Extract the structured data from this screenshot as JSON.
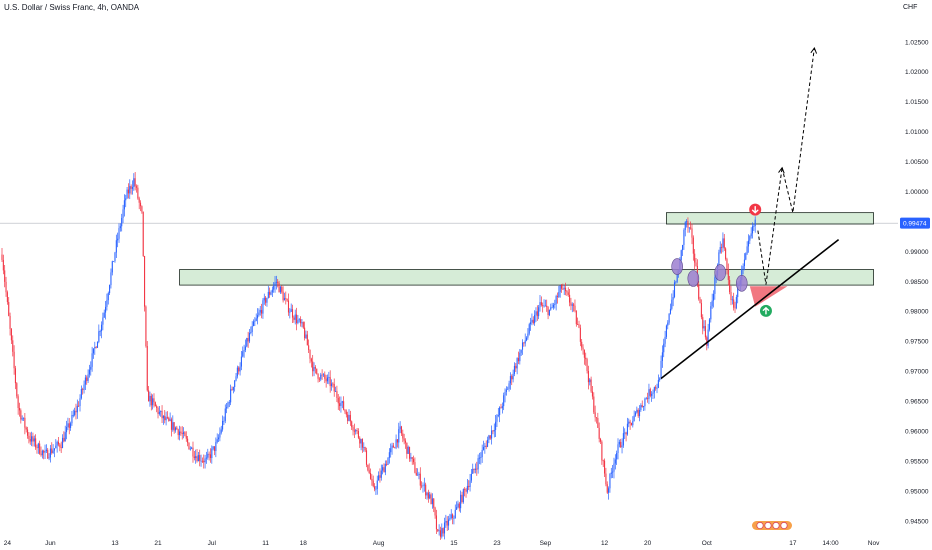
{
  "header": {
    "title": "U.S. Dollar / Swiss Franc, 4h, OANDA",
    "currency": "CHF"
  },
  "colors": {
    "up": "#2962ff",
    "down": "#f23645",
    "zone_fill": "#c8e6c9",
    "zone_stroke": "#1e2a22",
    "marker_purple": "#9c7fd0",
    "triangle_fill": "#ef5f6b",
    "arrow_down": "#f23645",
    "arrow_up": "#22ab60",
    "price_tag": "#2962ff"
  },
  "chart_data": {
    "type": "candlestick",
    "symbol": "U.S. Dollar / Swiss Franc, 4h, OANDA",
    "ylim": [
      0.943,
      1.027
    ],
    "yticks": [
      "1.02500",
      "1.02000",
      "1.01500",
      "1.01000",
      "1.00500",
      "1.00000",
      "0.99500",
      "0.99000",
      "0.98500",
      "0.98000",
      "0.97500",
      "0.97000",
      "0.96500",
      "0.96000",
      "0.95500",
      "0.95000",
      "0.94500"
    ],
    "current_price": 0.99474,
    "current_price_label": "0.99474",
    "xlim_days": [
      0,
      162
    ],
    "xticks": [
      {
        "label": "24",
        "day": 1
      },
      {
        "label": "Jun",
        "day": 9
      },
      {
        "label": "13",
        "day": 21
      },
      {
        "label": "21",
        "day": 29
      },
      {
        "label": "Jul",
        "day": 39
      },
      {
        "label": "11",
        "day": 49
      },
      {
        "label": "18",
        "day": 56
      },
      {
        "label": "Aug",
        "day": 70
      },
      {
        "label": "15",
        "day": 84
      },
      {
        "label": "23",
        "day": 92
      },
      {
        "label": "Sep",
        "day": 101
      },
      {
        "label": "12",
        "day": 112
      },
      {
        "label": "20",
        "day": 120
      },
      {
        "label": "Oct",
        "day": 131
      },
      {
        "label": "17",
        "day": 147
      },
      {
        "label": "14:00",
        "day": 154
      },
      {
        "label": "Nov",
        "day": 162
      }
    ],
    "price_path": [
      [
        0,
        0.9895
      ],
      [
        3,
        0.964
      ],
      [
        5,
        0.959
      ],
      [
        8,
        0.956
      ],
      [
        11,
        0.958
      ],
      [
        14,
        0.964
      ],
      [
        17,
        0.973
      ],
      [
        19,
        0.98
      ],
      [
        21,
        0.99
      ],
      [
        23,
        0.999
      ],
      [
        24.5,
        1.002
      ],
      [
        26,
        0.996
      ],
      [
        27,
        0.966
      ],
      [
        30,
        0.962
      ],
      [
        33,
        0.96
      ],
      [
        36,
        0.956
      ],
      [
        38,
        0.955
      ],
      [
        40,
        0.958
      ],
      [
        43,
        0.968
      ],
      [
        46,
        0.976
      ],
      [
        49,
        0.982
      ],
      [
        51,
        0.985
      ],
      [
        53,
        0.981
      ],
      [
        56,
        0.977
      ],
      [
        58,
        0.97
      ],
      [
        61,
        0.968
      ],
      [
        64,
        0.963
      ],
      [
        67,
        0.958
      ],
      [
        69,
        0.95
      ],
      [
        71,
        0.954
      ],
      [
        74,
        0.96
      ],
      [
        77,
        0.953
      ],
      [
        80,
        0.948
      ],
      [
        81,
        0.9425
      ],
      [
        84,
        0.946
      ],
      [
        87,
        0.952
      ],
      [
        90,
        0.958
      ],
      [
        92,
        0.962
      ],
      [
        95,
        0.97
      ],
      [
        98,
        0.977
      ],
      [
        100,
        0.981
      ],
      [
        102,
        0.98
      ],
      [
        104,
        0.984
      ],
      [
        106,
        0.981
      ],
      [
        108,
        0.974
      ],
      [
        110,
        0.964
      ],
      [
        111,
        0.959
      ],
      [
        112.5,
        0.95
      ],
      [
        114,
        0.956
      ],
      [
        116,
        0.96
      ],
      [
        118,
        0.963
      ],
      [
        120,
        0.966
      ],
      [
        122,
        0.968
      ],
      [
        124,
        0.98
      ],
      [
        126,
        0.988
      ],
      [
        127,
        0.995
      ],
      [
        128,
        0.993
      ],
      [
        129,
        0.987
      ],
      [
        130,
        0.979
      ],
      [
        131,
        0.975
      ],
      [
        132,
        0.982
      ],
      [
        133,
        0.988
      ],
      [
        134,
        0.992
      ],
      [
        135,
        0.985
      ],
      [
        136,
        0.98
      ],
      [
        137,
        0.985
      ],
      [
        138,
        0.988
      ],
      [
        139,
        0.992
      ],
      [
        140,
        0.995
      ]
    ],
    "zones": [
      {
        "name": "upper",
        "day_from": 123.5,
        "day_to": 162,
        "y_top": 0.9965,
        "y_bottom": 0.9946
      },
      {
        "name": "lower",
        "day_from": 33,
        "day_to": 162,
        "y_top": 0.987,
        "y_bottom": 0.9844
      }
    ],
    "trendline": {
      "from": [
        122.5,
        0.9688
      ],
      "to": [
        155.5,
        0.992
      ]
    },
    "markers": {
      "purple_ellipses": [
        [
          125.5,
          0.9875
        ],
        [
          128.5,
          0.9855
        ],
        [
          133.5,
          0.9865
        ],
        [
          137.5,
          0.9847
        ]
      ],
      "red_triangle": [
        [
          139,
          0.9842
        ],
        [
          146,
          0.9842
        ],
        [
          140,
          0.9808
        ]
      ],
      "arrow_down": [
        140,
        0.997
      ],
      "arrow_up": [
        142,
        0.9801
      ],
      "projections": [
        [
          [
            140.5,
            0.9935
          ],
          [
            142,
            0.9845
          ],
          [
            145,
            1.004
          ]
        ],
        [
          [
            145,
            1.004
          ],
          [
            147,
            0.9965
          ],
          [
            151,
            1.024
          ]
        ]
      ]
    },
    "grid": false
  }
}
